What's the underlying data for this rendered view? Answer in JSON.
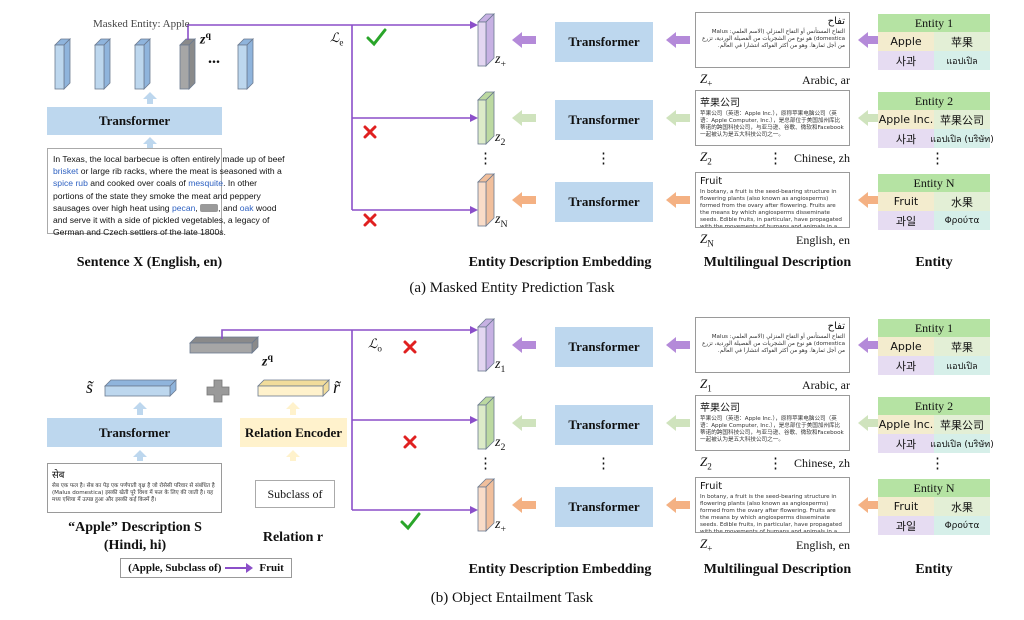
{
  "panels": [
    {
      "caption": "(a)  Masked Entity Prediction Task",
      "left": {
        "masked_label": "Masked Entity: Apple",
        "zq": {
          "main": "z",
          "sup": "q"
        },
        "ellipsis": "...",
        "transformer": "Transformer",
        "sentence": [
          [
            {
              "t": "In Texas, the local barbecue is often entirely made up of beef"
            }
          ],
          [
            {
              "t": "brisket",
              "link": true
            },
            {
              "t": " or large rib racks, where the meat is seasoned with a"
            }
          ],
          [
            {
              "t": "spice rub",
              "link": true
            },
            {
              "t": " and cooked over coals of "
            },
            {
              "t": "mesquite",
              "link": true
            },
            {
              "t": ". In other"
            }
          ],
          [
            {
              "t": "portions of the state they smoke the meat and peppery"
            }
          ],
          [
            {
              "t": "sausages over high heat using "
            },
            {
              "t": "pecan",
              "link": true
            },
            {
              "t": ", "
            },
            {
              "mask": true
            },
            {
              "t": ", and "
            },
            {
              "t": "oak",
              "link": true
            },
            {
              "t": " wood"
            }
          ],
          [
            {
              "t": "and serve it with a side of pickled vegetables, a legacy of"
            }
          ],
          [
            {
              "t": "German and Czech settlers of the late 1800s."
            }
          ]
        ],
        "caption": "Sentence X (English, en)"
      },
      "loss": {
        "main": "ℒ",
        "sub": "e"
      },
      "dots": "⋮",
      "rows": [
        {
          "z": {
            "main": "z",
            "sub": "+"
          },
          "transformer": "Transformer",
          "desc": {
            "title": "تفاح",
            "body": "التفاح المستأنس أو التفاح المنزلي (الاسم العلمي: Malus domestica) هو نوع من الشجريات من الفصيلة الوردية، تزرع من أجل ثمارها. وهو من أكثر الفواكه انتشارا في العالم.",
            "id": {
              "main": "Z",
              "sub": "+"
            },
            "lang": "Arabic, ar",
            "rtl": true
          },
          "entity": {
            "header": "Entity 1",
            "cells": [
              "Apple",
              "苹果",
              "사과",
              "แอปเปิล"
            ]
          }
        },
        {
          "z": {
            "main": "z",
            "sub": "2"
          },
          "transformer": "Transformer",
          "desc": {
            "title": "苹果公司",
            "body": "苹果公司（英语：Apple Inc.），原称苹果电脑公司（英语：Apple Computer, Inc.），是总部位于美国加州库比蒂诺的跨国科技公司，与亚马逊、谷歌、微软和Facebook一起被认为是五大科技公司之一。",
            "id": {
              "main": "Z",
              "sub": "2"
            },
            "lang": "Chinese, zh",
            "rtl": false
          },
          "entity": {
            "header": "Entity 2",
            "cells": [
              "Apple Inc.",
              "苹果公司",
              "사과",
              "แอปเปิล (บริษัท)"
            ]
          }
        },
        {
          "z": {
            "main": "z",
            "sub": "N"
          },
          "transformer": "Transformer",
          "desc": {
            "title": "Fruit",
            "body": "In botany, a fruit is the seed-bearing structure in flowering plants (also known as angiosperms) formed from the ovary after flowering. Fruits are the means by which angiosperms disseminate seeds. Edible fruits, in particular, have propagated with the movements of humans and animals in a",
            "id": {
              "main": "Z",
              "sub": "N"
            },
            "lang": "English, en",
            "rtl": false
          },
          "entity": {
            "header": "Entity N",
            "cells": [
              "Fruit",
              "水果",
              "과일",
              "Φρούτα"
            ]
          }
        }
      ],
      "column_labels": [
        "Entity Description Embedding",
        "Multilingual Description",
        "Entity"
      ]
    },
    {
      "caption": "(b)  Object Entailment Task",
      "left": {
        "s_tilde": "s̃",
        "r_tilde": "r̃",
        "zq": {
          "main": "z",
          "sup": "q"
        },
        "transformer": "Transformer",
        "relation_encoder": "Relation Encoder",
        "description": {
          "title": "सेब",
          "body": "सेब एक फल है। सेब का पेड़ एक पर्णपाती वृक्ष है जो रोसेसी परिवार से संबंधित है (Malus domestica) इसकी खेती पूरे विश्व में फल के लिए की जाती है। यह मध्य एशिया में उत्पन्न हुआ और इसकी कई किस्में हैं।"
        },
        "relation": "Subclass of",
        "caption_lines": [
          "“Apple” Description S",
          "(Hindi, hi)"
        ],
        "relation_caption": "Relation r",
        "triple": {
          "head": "(Apple, Subclass of)",
          "tail": "Fruit"
        }
      },
      "loss": {
        "main": "ℒ",
        "sub": "o"
      },
      "dots": "⋮",
      "rows": [
        {
          "z": {
            "main": "z",
            "sub": "1"
          },
          "transformer": "Transformer",
          "desc": {
            "title": "تفاح",
            "body": "التفاح المستأنس أو التفاح المنزلي (الاسم العلمي: Malus domestica) هو نوع من الشجريات من الفصيلة الوردية، تزرع من أجل ثمارها. وهو من أكثر الفواكه انتشارا في العالم.",
            "id": {
              "main": "Z",
              "sub": "1"
            },
            "lang": "Arabic, ar",
            "rtl": true
          },
          "entity": {
            "header": "Entity 1",
            "cells": [
              "Apple",
              "苹果",
              "사과",
              "แอปเปิล"
            ]
          }
        },
        {
          "z": {
            "main": "z",
            "sub": "2"
          },
          "transformer": "Transformer",
          "desc": {
            "title": "苹果公司",
            "body": "苹果公司（英语：Apple Inc.），原称苹果电脑公司（英语：Apple Computer, Inc.），是总部位于美国加州库比蒂诺的跨国科技公司，与亚马逊、谷歌、微软和Facebook一起被认为是五大科技公司之一。",
            "id": {
              "main": "Z",
              "sub": "2"
            },
            "lang": "Chinese, zh",
            "rtl": false
          },
          "entity": {
            "header": "Entity 2",
            "cells": [
              "Apple Inc.",
              "苹果公司",
              "사과",
              "แอปเปิล (บริษัท)"
            ]
          }
        },
        {
          "z": {
            "main": "z",
            "sub": "+"
          },
          "transformer": "Transformer",
          "desc": {
            "title": "Fruit",
            "body": "In botany, a fruit is the seed-bearing structure in flowering plants (also known as angiosperms) formed from the ovary after flowering. Fruits are the means by which angiosperms disseminate seeds. Edible fruits, in particular, have propagated with the movements of humans and animals in a",
            "id": {
              "main": "Z",
              "sub": "+"
            },
            "lang": "English, en",
            "rtl": false
          },
          "entity": {
            "header": "Entity N",
            "cells": [
              "Fruit",
              "水果",
              "과일",
              "Φρούτα"
            ]
          }
        }
      ],
      "column_labels": [
        "Entity Description Embedding",
        "Multilingual Description",
        "Entity"
      ]
    }
  ]
}
